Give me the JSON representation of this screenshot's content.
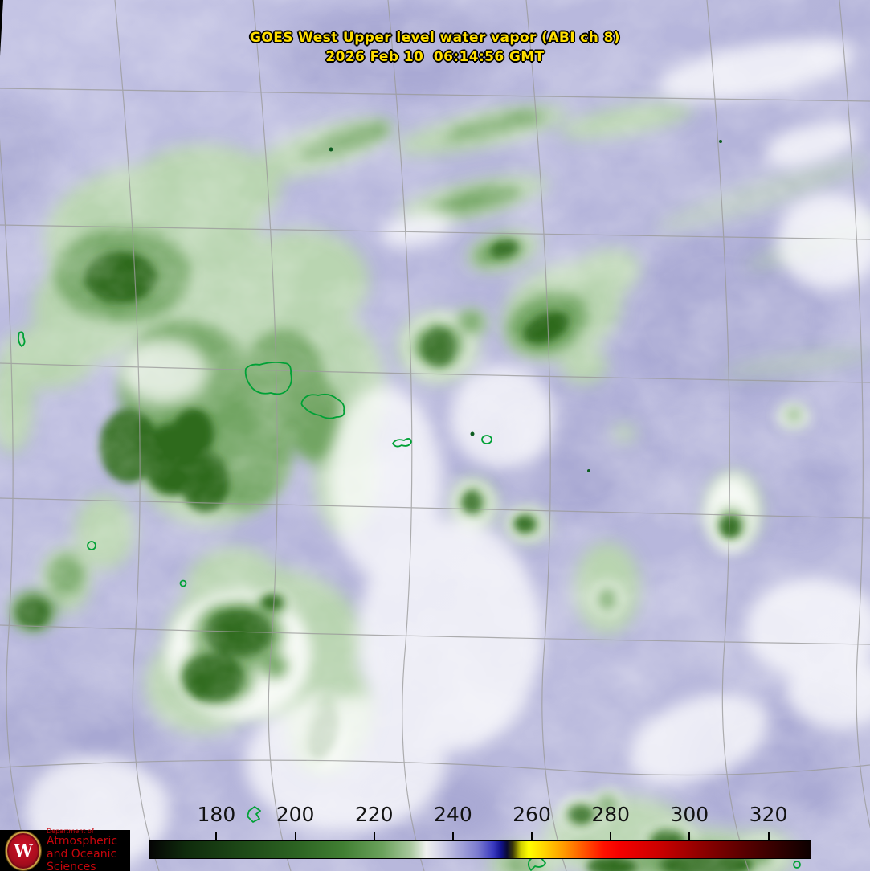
{
  "header": {
    "title_line1": "GOES West Upper level water vapor (ABI ch 8)",
    "title_line2": "2026 Feb 10  06:14:56 GMT",
    "title_color": "#ffdf00"
  },
  "colorbar": {
    "scale": {
      "min": 163,
      "max": 330.5
    },
    "ticks": [
      {
        "label": "180",
        "value": 180
      },
      {
        "label": "200",
        "value": 200
      },
      {
        "label": "220",
        "value": 220
      },
      {
        "label": "240",
        "value": 240
      },
      {
        "label": "260",
        "value": 260
      },
      {
        "label": "280",
        "value": 280
      },
      {
        "label": "300",
        "value": 300
      },
      {
        "label": "320",
        "value": 320
      }
    ],
    "stops": [
      {
        "value": 163,
        "color": "#050505"
      },
      {
        "value": 172,
        "color": "#0f2b0c"
      },
      {
        "value": 185,
        "color": "#1c4616"
      },
      {
        "value": 200,
        "color": "#2c6322"
      },
      {
        "value": 212,
        "color": "#417f33"
      },
      {
        "value": 222,
        "color": "#6ba25c"
      },
      {
        "value": 229,
        "color": "#a8c89d"
      },
      {
        "value": 233,
        "color": "#eef0ee"
      },
      {
        "value": 236,
        "color": "#d9d9ea"
      },
      {
        "value": 240,
        "color": "#b3b3dd"
      },
      {
        "value": 246,
        "color": "#7d7dd0"
      },
      {
        "value": 250,
        "color": "#3a3ac0"
      },
      {
        "value": 252,
        "color": "#12128e"
      },
      {
        "value": 253.5,
        "color": "#0a0a35"
      },
      {
        "value": 255,
        "color": "#3d3a06"
      },
      {
        "value": 257,
        "color": "#cfce00"
      },
      {
        "value": 259,
        "color": "#ffff00"
      },
      {
        "value": 263,
        "color": "#ffd400"
      },
      {
        "value": 268,
        "color": "#ff9900"
      },
      {
        "value": 273,
        "color": "#ff5500"
      },
      {
        "value": 278,
        "color": "#ff1100"
      },
      {
        "value": 282,
        "color": "#f40000"
      },
      {
        "value": 292,
        "color": "#cc0000"
      },
      {
        "value": 303,
        "color": "#8e0000"
      },
      {
        "value": 313,
        "color": "#5c0000"
      },
      {
        "value": 322,
        "color": "#330000"
      },
      {
        "value": 330.5,
        "color": "#0d0000"
      }
    ]
  },
  "logo": {
    "department_line": "Department of",
    "name_line1": "Atmospheric",
    "name_line2": "and Oceanic Sciences",
    "crest_letter": "W",
    "text_color": "#c5050c",
    "background": "#000000"
  },
  "map": {
    "palette": {
      "base_dry_lavender": "#b8b8dc",
      "very_dry_white": "#ffffff",
      "moist_light_green": "#b9d6ae",
      "moist_medium_green": "#6ea35e",
      "moist_dark_green": "#2d6b1d",
      "coastline_green": "#00a136",
      "gridline_gray": "#9b9b9b"
    }
  }
}
